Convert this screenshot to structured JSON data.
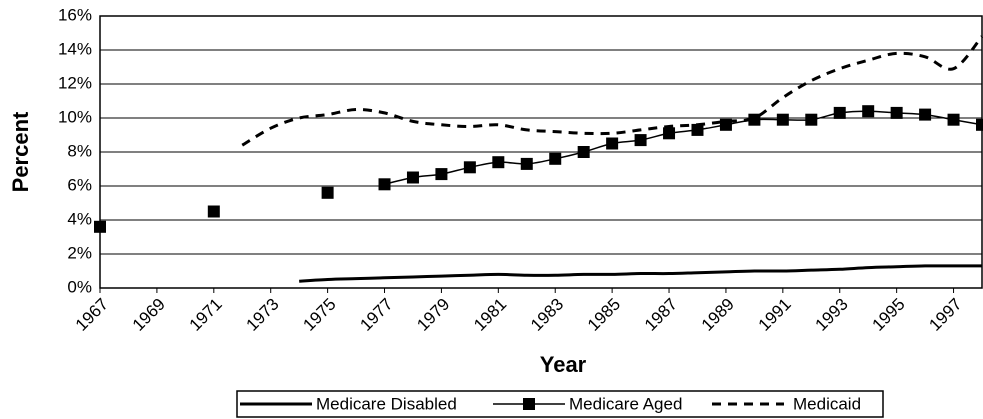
{
  "chart_data": {
    "type": "line",
    "xlabel": "Year",
    "ylabel": "Percent",
    "x": [
      1967,
      1968,
      1969,
      1970,
      1971,
      1972,
      1973,
      1974,
      1975,
      1976,
      1977,
      1978,
      1979,
      1980,
      1981,
      1982,
      1983,
      1984,
      1985,
      1986,
      1987,
      1988,
      1989,
      1990,
      1991,
      1992,
      1993,
      1994,
      1995,
      1996,
      1997,
      1998
    ],
    "series": [
      {
        "name": "Medicare Disabled",
        "color": "#000000",
        "dash": "solid",
        "marker": "none",
        "values": [
          null,
          null,
          null,
          null,
          null,
          null,
          null,
          0.4,
          0.5,
          0.55,
          0.6,
          0.65,
          0.7,
          0.75,
          0.8,
          0.75,
          0.75,
          0.8,
          0.8,
          0.85,
          0.85,
          0.9,
          0.95,
          1.0,
          1.0,
          1.05,
          1.1,
          1.2,
          1.25,
          1.3,
          1.3,
          1.3
        ]
      },
      {
        "name": "Medicare Aged",
        "color": "#000000",
        "dash": "solid",
        "marker": "square",
        "values": [
          3.6,
          null,
          null,
          null,
          4.5,
          null,
          null,
          null,
          5.6,
          null,
          6.1,
          6.5,
          6.7,
          7.1,
          7.4,
          7.3,
          7.6,
          8.0,
          8.5,
          8.7,
          9.1,
          9.3,
          9.6,
          9.9,
          9.9,
          9.9,
          10.3,
          10.4,
          10.3,
          10.2,
          9.9,
          9.6
        ]
      },
      {
        "name": "Medicaid",
        "color": "#000000",
        "dash": "dashed",
        "marker": "none",
        "values": [
          null,
          null,
          null,
          null,
          null,
          8.4,
          9.4,
          10.0,
          10.2,
          10.5,
          10.3,
          9.8,
          9.6,
          9.5,
          9.6,
          9.3,
          9.2,
          9.1,
          9.1,
          9.3,
          9.5,
          9.6,
          9.8,
          10.0,
          11.2,
          12.2,
          12.9,
          13.4,
          13.8,
          13.6,
          12.9,
          14.8
        ]
      }
    ],
    "xlim": [
      1967,
      1998
    ],
    "xticks": [
      1967,
      1969,
      1971,
      1973,
      1975,
      1977,
      1979,
      1981,
      1983,
      1985,
      1987,
      1989,
      1991,
      1993,
      1995,
      1997
    ],
    "ylim": [
      0,
      16
    ],
    "yticks": [
      {
        "value": 0,
        "label": "0%"
      },
      {
        "value": 2,
        "label": "2%"
      },
      {
        "value": 4,
        "label": "4%"
      },
      {
        "value": 6,
        "label": "6%"
      },
      {
        "value": 8,
        "label": "8%"
      },
      {
        "value": 10,
        "label": "10%"
      },
      {
        "value": 12,
        "label": "12%"
      },
      {
        "value": 14,
        "label": "14%"
      },
      {
        "value": 16,
        "label": "16%"
      }
    ],
    "grid": true,
    "legend": "bottom"
  }
}
